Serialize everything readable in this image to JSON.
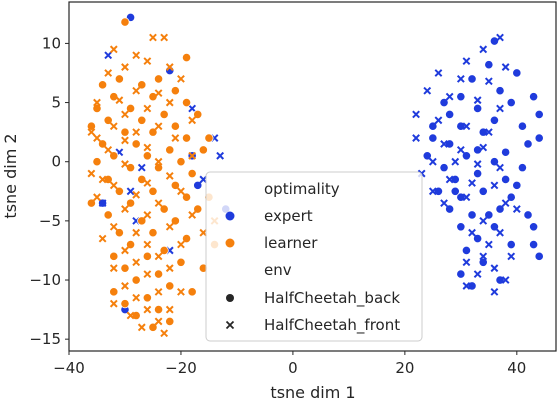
{
  "chart_data": {
    "type": "scatter",
    "xlabel": "tsne dim 1",
    "ylabel": "tsne dim 2",
    "xlim": [
      -40,
      47
    ],
    "ylim": [
      -16,
      13.5
    ],
    "xticks": [
      -40,
      -20,
      0,
      20,
      40
    ],
    "yticks": [
      -15,
      -10,
      -5,
      0,
      5,
      10
    ],
    "xtick_labels": [
      "−40",
      "−20",
      "0",
      "20",
      "40"
    ],
    "ytick_labels": [
      "−15",
      "−10",
      "−5",
      "0",
      "5",
      "10"
    ],
    "grid": false,
    "legend": {
      "placement": "lower-center",
      "title_hue": "optimality",
      "title_style": "env",
      "hue_entries": [
        {
          "label": "expert",
          "color": "#1f3bdc"
        },
        {
          "label": "learner",
          "color": "#f5800d"
        }
      ],
      "style_entries": [
        {
          "label": "HalfCheetah_back",
          "marker": "circle"
        },
        {
          "label": "HalfCheetah_front",
          "marker": "x"
        }
      ]
    },
    "colors": {
      "expert": "#1f3bdc",
      "learner": "#f5800d",
      "edge": "#ffffff"
    },
    "series": [
      {
        "name": "expert · HalfCheetah_back",
        "marker": "circle",
        "color": "#1f3bdc",
        "points": [
          [
            -29,
            12.2
          ],
          [
            -22,
            7.7
          ],
          [
            -18,
            0.5
          ],
          [
            -34,
            -3.5
          ],
          [
            -12,
            -4
          ],
          [
            -17,
            -2
          ],
          [
            -30,
            -12.5
          ],
          [
            36,
            10.2
          ],
          [
            35,
            8.2
          ],
          [
            32,
            7
          ],
          [
            37,
            6
          ],
          [
            30,
            5.5
          ],
          [
            39,
            5
          ],
          [
            33,
            4.5
          ],
          [
            28,
            4
          ],
          [
            36,
            3.5
          ],
          [
            30,
            3
          ],
          [
            34,
            2.5
          ],
          [
            25,
            2
          ],
          [
            42,
            1.5
          ],
          [
            28,
            1.5
          ],
          [
            33,
            1
          ],
          [
            38,
            0.8
          ],
          [
            24,
            0.5
          ],
          [
            31,
            0.5
          ],
          [
            36,
            0
          ],
          [
            27,
            -0.5
          ],
          [
            41,
            -0.5
          ],
          [
            33,
            -1
          ],
          [
            29,
            -1.5
          ],
          [
            38,
            -1.5
          ],
          [
            26,
            -2.5
          ],
          [
            34,
            -2.5
          ],
          [
            30,
            -3
          ],
          [
            39,
            -3
          ],
          [
            28,
            -4
          ],
          [
            37,
            -4
          ],
          [
            32,
            -4.5
          ],
          [
            35,
            -4.5
          ],
          [
            42,
            -4.5
          ],
          [
            30,
            -5.5
          ],
          [
            36,
            -5.5
          ],
          [
            43,
            -5.5
          ],
          [
            33,
            -6.5
          ],
          [
            39,
            -7
          ],
          [
            31,
            -7.5
          ],
          [
            43,
            -7
          ],
          [
            44,
            -8
          ],
          [
            34,
            -8.5
          ],
          [
            30,
            -9.5
          ],
          [
            37,
            -10
          ],
          [
            32,
            -10.5
          ],
          [
            40,
            7.5
          ],
          [
            43,
            5.5
          ],
          [
            44,
            4
          ],
          [
            41,
            3
          ],
          [
            44,
            2
          ],
          [
            27,
            5
          ],
          [
            25,
            3
          ],
          [
            29,
            -2.5
          ],
          [
            40,
            -2
          ]
        ]
      },
      {
        "name": "expert · HalfCheetah_front",
        "marker": "x",
        "color": "#1f3bdc",
        "points": [
          [
            -33,
            9
          ],
          [
            -18,
            4.5
          ],
          [
            -14,
            2
          ],
          [
            -13,
            0.5
          ],
          [
            -31,
            0.8
          ],
          [
            -27,
            -0.5
          ],
          [
            -16,
            -1.5
          ],
          [
            -29,
            -2.5
          ],
          [
            -34,
            -3.5
          ],
          [
            -28,
            -5
          ],
          [
            -22,
            -7.5
          ],
          [
            37,
            10.5
          ],
          [
            34,
            9.5
          ],
          [
            31,
            8.5
          ],
          [
            38,
            8
          ],
          [
            26,
            7.5
          ],
          [
            30,
            7
          ],
          [
            35,
            6.8
          ],
          [
            24,
            6
          ],
          [
            28,
            5.5
          ],
          [
            33,
            5.2
          ],
          [
            37,
            4.5
          ],
          [
            22,
            4
          ],
          [
            26,
            3.5
          ],
          [
            31,
            3
          ],
          [
            35,
            2.5
          ],
          [
            22,
            2
          ],
          [
            27,
            1.5
          ],
          [
            30,
            1
          ],
          [
            34,
            1.2
          ],
          [
            25,
            0
          ],
          [
            29,
            0
          ],
          [
            33,
            -0.2
          ],
          [
            37,
            -0.5
          ],
          [
            23,
            -1
          ],
          [
            28,
            -1.5
          ],
          [
            32,
            -1.8
          ],
          [
            36,
            -2
          ],
          [
            25,
            -2.5
          ],
          [
            31,
            -3
          ],
          [
            38,
            -3.5
          ],
          [
            27,
            -3.5
          ],
          [
            40,
            -4
          ],
          [
            34,
            -5
          ],
          [
            37,
            -6
          ],
          [
            35,
            -7
          ],
          [
            39,
            -8
          ],
          [
            31,
            -8.5
          ],
          [
            36,
            -9
          ],
          [
            33,
            -9.5
          ],
          [
            38,
            -10
          ],
          [
            31,
            -10.5
          ],
          [
            36,
            -11
          ],
          [
            34,
            -8
          ],
          [
            32,
            -6
          ]
        ]
      },
      {
        "name": "learner · HalfCheetah_back",
        "marker": "circle",
        "color": "#f5800d",
        "points": [
          [
            -30,
            11.8
          ],
          [
            -19,
            8.8
          ],
          [
            -24,
            7
          ],
          [
            -31,
            7
          ],
          [
            -34,
            6.5
          ],
          [
            -27,
            6.5
          ],
          [
            -21,
            6
          ],
          [
            -32,
            5.5
          ],
          [
            -25,
            5.5
          ],
          [
            -19,
            5
          ],
          [
            -35,
            4.5
          ],
          [
            -29,
            4.5
          ],
          [
            -23,
            4
          ],
          [
            -17,
            4
          ],
          [
            -33,
            3.5
          ],
          [
            -27,
            3.5
          ],
          [
            -21,
            3
          ],
          [
            -36,
            3
          ],
          [
            -30,
            2.5
          ],
          [
            -25,
            2.5
          ],
          [
            -19,
            2
          ],
          [
            -34,
            1.5
          ],
          [
            -28,
            1.5
          ],
          [
            -22,
            1
          ],
          [
            -16,
            1
          ],
          [
            -32,
            0.5
          ],
          [
            -26,
            0.5
          ],
          [
            -20,
            0
          ],
          [
            -35,
            0
          ],
          [
            -29,
            -0.5
          ],
          [
            -24,
            -0.5
          ],
          [
            -18,
            -1
          ],
          [
            -33,
            -1.5
          ],
          [
            -27,
            -1.5
          ],
          [
            -21,
            -2
          ],
          [
            -31,
            -2.5
          ],
          [
            -25,
            -2.5
          ],
          [
            -19,
            -3
          ],
          [
            -36,
            -3.5
          ],
          [
            -29,
            -3.5
          ],
          [
            -23,
            -4
          ],
          [
            -17,
            -4
          ],
          [
            -33,
            -4.5
          ],
          [
            -27,
            -5
          ],
          [
            -21,
            -5
          ],
          [
            -31,
            -6
          ],
          [
            -25,
            -6
          ],
          [
            -19,
            -6.5
          ],
          [
            -29,
            -7
          ],
          [
            -23,
            -7.5
          ],
          [
            -32,
            -8
          ],
          [
            -26,
            -8
          ],
          [
            -20,
            -8.5
          ],
          [
            -30,
            -9
          ],
          [
            -24,
            -9.5
          ],
          [
            -28,
            -10
          ],
          [
            -22,
            -10.5
          ],
          [
            -32,
            -11
          ],
          [
            -26,
            -11.5
          ],
          [
            -30,
            -12
          ],
          [
            -24,
            -12.5
          ],
          [
            -28,
            -13
          ],
          [
            -22,
            -13.5
          ],
          [
            -25,
            -14
          ],
          [
            -18,
            -11
          ],
          [
            -16,
            -9
          ],
          [
            -14,
            -7
          ],
          [
            -15,
            2
          ],
          [
            -15,
            -3
          ]
        ]
      },
      {
        "name": "learner · HalfCheetah_front",
        "marker": "x",
        "color": "#f5800d",
        "points": [
          [
            -32,
            9.5
          ],
          [
            -25,
            10.5
          ],
          [
            -23,
            10.5
          ],
          [
            -28,
            9
          ],
          [
            -22,
            8
          ],
          [
            -30,
            8
          ],
          [
            -26,
            8.5
          ],
          [
            -33,
            7.5
          ],
          [
            -20,
            7
          ],
          [
            -28,
            6
          ],
          [
            -24,
            5.8
          ],
          [
            -31,
            5.2
          ],
          [
            -35,
            5
          ],
          [
            -22,
            5
          ],
          [
            -26,
            4.5
          ],
          [
            -30,
            4
          ],
          [
            -18,
            3.5
          ],
          [
            -32,
            3
          ],
          [
            -24,
            3
          ],
          [
            -28,
            2.5
          ],
          [
            -35,
            2
          ],
          [
            -21,
            2
          ],
          [
            -30,
            1.8
          ],
          [
            -26,
            1.2
          ],
          [
            -33,
            1
          ],
          [
            -18,
            0.5
          ],
          [
            -24,
            0
          ],
          [
            -30,
            -0.2
          ],
          [
            -36,
            -1
          ],
          [
            -22,
            -1.2
          ],
          [
            -26,
            -1.8
          ],
          [
            -32,
            -2
          ],
          [
            -20,
            -2.5
          ],
          [
            -28,
            -2.8
          ],
          [
            -35,
            -3
          ],
          [
            -24,
            -3.5
          ],
          [
            -30,
            -4
          ],
          [
            -18,
            -4.5
          ],
          [
            -26,
            -4.5
          ],
          [
            -32,
            -5.5
          ],
          [
            -22,
            -5.5
          ],
          [
            -28,
            -6
          ],
          [
            -34,
            -6.5
          ],
          [
            -20,
            -7
          ],
          [
            -26,
            -7
          ],
          [
            -30,
            -7.5
          ],
          [
            -24,
            -8
          ],
          [
            -32,
            -9
          ],
          [
            -28,
            -8.5
          ],
          [
            -22,
            -9
          ],
          [
            -26,
            -9.5
          ],
          [
            -30,
            -10.5
          ],
          [
            -24,
            -11
          ],
          [
            -20,
            -11
          ],
          [
            -28,
            -11.5
          ],
          [
            -32,
            -12
          ],
          [
            -26,
            -12.5
          ],
          [
            -22,
            -12.5
          ],
          [
            -29,
            -13
          ],
          [
            -24,
            -13.5
          ],
          [
            -27,
            -14
          ],
          [
            -23,
            -14.5
          ],
          [
            -36,
            2.5
          ],
          [
            -34,
            -1.5
          ],
          [
            -16,
            -6
          ],
          [
            -14,
            -5
          ]
        ]
      }
    ]
  }
}
